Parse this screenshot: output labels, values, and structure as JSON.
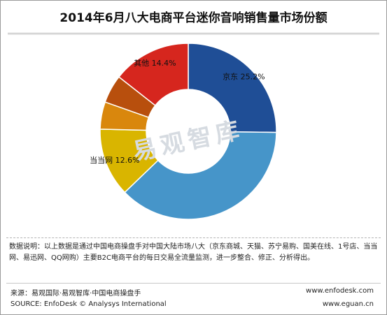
{
  "title": "2014年6月八大电商平台迷你音响销售量市场份额",
  "watermark": "易观智库",
  "chart_data": {
    "type": "pie",
    "donut": true,
    "slices": [
      {
        "name": "京东",
        "value": 25.2,
        "label": "京东 25.2%",
        "color": "#1f4e96"
      },
      {
        "name": "",
        "value": 37.6,
        "label": "",
        "color": "#4695c9"
      },
      {
        "name": "当当网",
        "value": 12.6,
        "label": "当当网 12.6%",
        "color": "#d9b500"
      },
      {
        "name": "",
        "value": 5.0,
        "label": "",
        "color": "#d9870d"
      },
      {
        "name": "",
        "value": 5.2,
        "label": "",
        "color": "#b84f0d"
      },
      {
        "name": "其他",
        "value": 14.4,
        "label": "其他 14.4%",
        "color": "#d6261e"
      }
    ]
  },
  "note": "数据说明：以上数据是通过中国电商操盘手对中国大陆市场八大（京东商城、天猫、苏宁易购、国美在线、1号店、当当网、易迅网、QQ网购）主要B2C电商平台的每日交易全流量监测，进一步整合、修正、分析得出。",
  "source_line1": "来源：易观国际·易观智库·中国电商操盘手",
  "source_line2": "SOURCE: EnfoDesk © Analysys International",
  "website1": "www.enfodesk.com",
  "website2": "www.eguan.cn"
}
